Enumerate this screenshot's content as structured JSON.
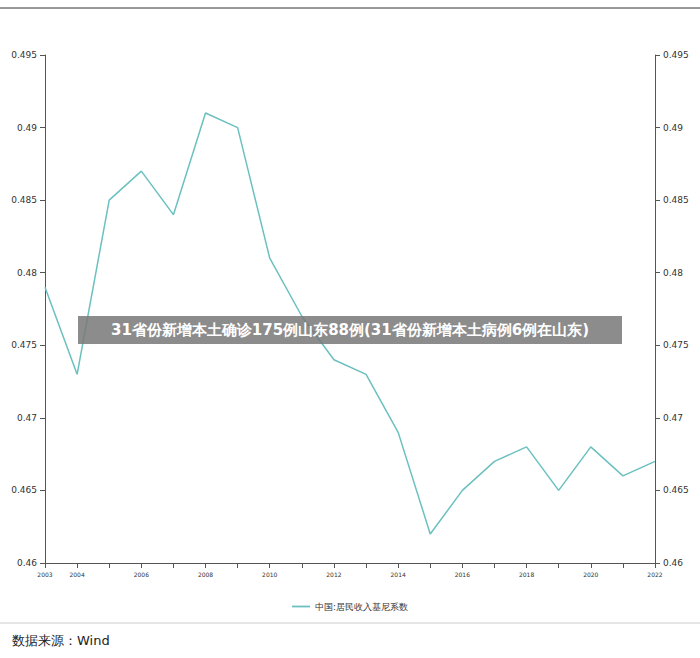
{
  "chart_data": {
    "type": "line",
    "categories": [
      "2003",
      "2004",
      null,
      "2006",
      null,
      "2008",
      null,
      "2010",
      null,
      "2012",
      null,
      "2014",
      null,
      "2016",
      null,
      "2018",
      null,
      "2020",
      null,
      "2022"
    ],
    "series": [
      {
        "name": "中国:居民收入基尼系数",
        "color": "#6cc0c0",
        "values": [
          0.479,
          0.473,
          0.485,
          0.487,
          0.484,
          0.491,
          0.49,
          0.481,
          0.477,
          0.474,
          0.473,
          0.469,
          0.462,
          0.465,
          0.467,
          0.468,
          0.465,
          0.468,
          0.466,
          0.467
        ]
      }
    ],
    "ylim": [
      0.46,
      0.495
    ],
    "yticks": [
      0.46,
      0.465,
      0.47,
      0.475,
      0.48,
      0.485,
      0.49,
      0.495
    ],
    "y2lim": [
      0.46,
      0.495
    ],
    "y2ticks": [
      0.46,
      0.465,
      0.47,
      0.475,
      0.48,
      0.485,
      0.49,
      0.495
    ],
    "grid": false,
    "legend": "bottom",
    "marker": "none",
    "line_style": "solid",
    "banner": "31省份新增本土确诊175例山东88例(31省份新增本土病例6例在山东)",
    "source": "数据来源：Wind"
  }
}
